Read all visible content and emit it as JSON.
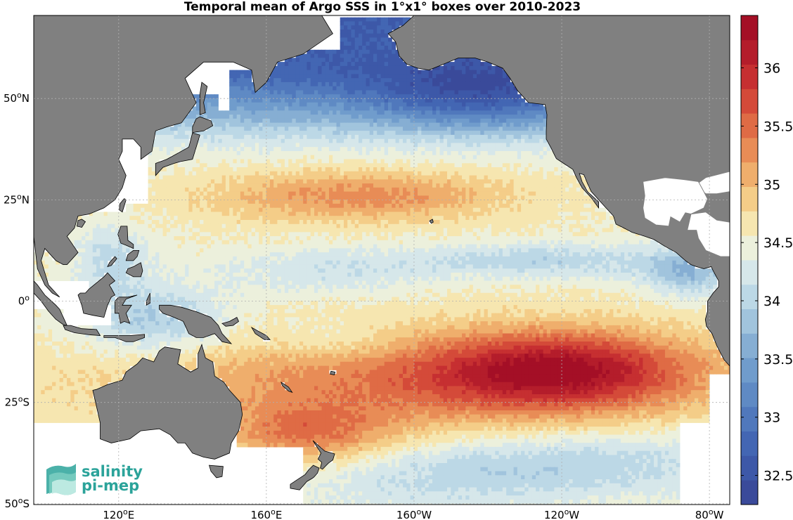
{
  "title": "Temporal mean of Argo SSS in 1°x1° boxes over 2010-2023",
  "lat_ticks": [
    {
      "deg": "50",
      "hem": "N",
      "lat": 50
    },
    {
      "deg": "25",
      "hem": "N",
      "lat": 25
    },
    {
      "deg": "0",
      "hem": "",
      "lat": 0
    },
    {
      "deg": "25",
      "hem": "S",
      "lat": -25
    },
    {
      "deg": "50",
      "hem": "S",
      "lat": -50
    }
  ],
  "lon_ticks": [
    {
      "deg": "120",
      "hem": "E",
      "lon": 120
    },
    {
      "deg": "160",
      "hem": "E",
      "lon": 160
    },
    {
      "deg": "160",
      "hem": "W",
      "lon": 200
    },
    {
      "deg": "120",
      "hem": "W",
      "lon": 240
    },
    {
      "deg": "80",
      "hem": "W",
      "lon": 280
    }
  ],
  "colorbar": {
    "min": 32.25,
    "max": 36.45,
    "ticks": [
      "32.5",
      "33",
      "33.5",
      "34",
      "34.5",
      "35",
      "35.5",
      "36"
    ],
    "colors": [
      "#3a4a9a",
      "#3d58a8",
      "#4366b3",
      "#5078bc",
      "#5f8ac4",
      "#709ccc",
      "#86aed3",
      "#a1c4dd",
      "#bcd8e6",
      "#d6e7ea",
      "#ecf0dc",
      "#f6e6b0",
      "#f4cd88",
      "#efae6c",
      "#e88c56",
      "#df6b45",
      "#d44a39",
      "#c62f31",
      "#b41d2b",
      "#a40f26"
    ]
  },
  "logo": {
    "line1": "salinity",
    "line2": "pi-mep"
  },
  "colors": {
    "land": "#808080",
    "ocean_missing": "#ffffff",
    "accent_logo": "#2ba39a"
  }
}
